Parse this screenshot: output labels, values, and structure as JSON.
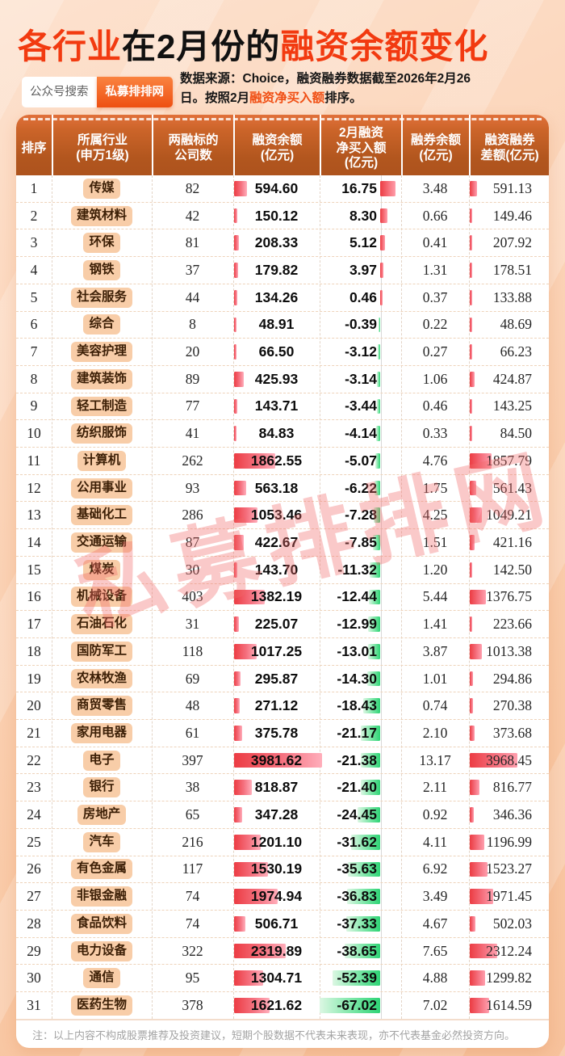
{
  "header": {
    "title_red1": "各行业",
    "title_black": "在2月份的",
    "title_red2": "融资余额变化",
    "search_label": "公众号搜索",
    "brand_label": "私募排排网",
    "source_line1": "数据来源：Choice，融资融券数据截至2026年2月26",
    "source_line2_pre": "日。按照2月",
    "source_line2_highlight": "融资净买入额",
    "source_line2_post": "排序。"
  },
  "watermark": "私募排排网",
  "note": "注：以上内容不构成股票推荐及投资建议，短期个股数据不代表未来表现，亦不代表基金必然投资方向。",
  "colors": {
    "accent_red": "#f23a10",
    "header_cell_bg": "#b2561e",
    "pill_bg": "#f8cda8",
    "bar_red": "#ec3c43",
    "bar_pink": "#ffaebb",
    "bar_green": "#2dd374",
    "page_bg": "#f9c9a6"
  },
  "chart_data": {
    "type": "table",
    "title": "各行业在2月份的融资余额变化",
    "sort_note": "按照2月融资净买入额排序",
    "columns": [
      "排序",
      "所属行业(申万1级)",
      "两融标的公司数",
      "融资余额(亿元)",
      "2月融资净买入额(亿元)",
      "融券余额(亿元)",
      "融资融券差额(亿元)"
    ],
    "header_lines": [
      [
        "排序"
      ],
      [
        "所属行业",
        "(申万1级)"
      ],
      [
        "两融标的",
        "公司数"
      ],
      [
        "融资余额",
        "(亿元)"
      ],
      [
        "2月融资",
        "净买入额",
        "(亿元)"
      ],
      [
        "融券余额",
        "(亿元)"
      ],
      [
        "融资融券",
        "差额(亿元)"
      ]
    ],
    "bar_scale_max": {
      "financing_balance": 3981.62,
      "net_buy": 67.02,
      "margin_diff": 3968.45
    },
    "rows": [
      {
        "rank": 1,
        "industry": "传媒",
        "companies": 82,
        "financing_balance": "594.60",
        "net_buy": "16.75",
        "short_balance": "3.48",
        "margin_diff": "591.13"
      },
      {
        "rank": 2,
        "industry": "建筑材料",
        "companies": 42,
        "financing_balance": "150.12",
        "net_buy": "8.30",
        "short_balance": "0.66",
        "margin_diff": "149.46"
      },
      {
        "rank": 3,
        "industry": "环保",
        "companies": 81,
        "financing_balance": "208.33",
        "net_buy": "5.12",
        "short_balance": "0.41",
        "margin_diff": "207.92"
      },
      {
        "rank": 4,
        "industry": "钢铁",
        "companies": 37,
        "financing_balance": "179.82",
        "net_buy": "3.97",
        "short_balance": "1.31",
        "margin_diff": "178.51"
      },
      {
        "rank": 5,
        "industry": "社会服务",
        "companies": 44,
        "financing_balance": "134.26",
        "net_buy": "0.46",
        "short_balance": "0.37",
        "margin_diff": "133.88"
      },
      {
        "rank": 6,
        "industry": "综合",
        "companies": 8,
        "financing_balance": "48.91",
        "net_buy": "-0.39",
        "short_balance": "0.22",
        "margin_diff": "48.69"
      },
      {
        "rank": 7,
        "industry": "美容护理",
        "companies": 20,
        "financing_balance": "66.50",
        "net_buy": "-3.12",
        "short_balance": "0.27",
        "margin_diff": "66.23"
      },
      {
        "rank": 8,
        "industry": "建筑装饰",
        "companies": 89,
        "financing_balance": "425.93",
        "net_buy": "-3.14",
        "short_balance": "1.06",
        "margin_diff": "424.87"
      },
      {
        "rank": 9,
        "industry": "轻工制造",
        "companies": 77,
        "financing_balance": "143.71",
        "net_buy": "-3.44",
        "short_balance": "0.46",
        "margin_diff": "143.25"
      },
      {
        "rank": 10,
        "industry": "纺织服饰",
        "companies": 41,
        "financing_balance": "84.83",
        "net_buy": "-4.14",
        "short_balance": "0.33",
        "margin_diff": "84.50"
      },
      {
        "rank": 11,
        "industry": "计算机",
        "companies": 262,
        "financing_balance": "1862.55",
        "net_buy": "-5.07",
        "short_balance": "4.76",
        "margin_diff": "1857.79"
      },
      {
        "rank": 12,
        "industry": "公用事业",
        "companies": 93,
        "financing_balance": "563.18",
        "net_buy": "-6.22",
        "short_balance": "1.75",
        "margin_diff": "561.43"
      },
      {
        "rank": 13,
        "industry": "基础化工",
        "companies": 286,
        "financing_balance": "1053.46",
        "net_buy": "-7.28",
        "short_balance": "4.25",
        "margin_diff": "1049.21"
      },
      {
        "rank": 14,
        "industry": "交通运输",
        "companies": 87,
        "financing_balance": "422.67",
        "net_buy": "-7.85",
        "short_balance": "1.51",
        "margin_diff": "421.16"
      },
      {
        "rank": 15,
        "industry": "煤炭",
        "companies": 30,
        "financing_balance": "143.70",
        "net_buy": "-11.32",
        "short_balance": "1.20",
        "margin_diff": "142.50"
      },
      {
        "rank": 16,
        "industry": "机械设备",
        "companies": 403,
        "financing_balance": "1382.19",
        "net_buy": "-12.44",
        "short_balance": "5.44",
        "margin_diff": "1376.75"
      },
      {
        "rank": 17,
        "industry": "石油石化",
        "companies": 31,
        "financing_balance": "225.07",
        "net_buy": "-12.99",
        "short_balance": "1.41",
        "margin_diff": "223.66"
      },
      {
        "rank": 18,
        "industry": "国防军工",
        "companies": 118,
        "financing_balance": "1017.25",
        "net_buy": "-13.01",
        "short_balance": "3.87",
        "margin_diff": "1013.38"
      },
      {
        "rank": 19,
        "industry": "农林牧渔",
        "companies": 69,
        "financing_balance": "295.87",
        "net_buy": "-14.30",
        "short_balance": "1.01",
        "margin_diff": "294.86"
      },
      {
        "rank": 20,
        "industry": "商贸零售",
        "companies": 48,
        "financing_balance": "271.12",
        "net_buy": "-18.43",
        "short_balance": "0.74",
        "margin_diff": "270.38"
      },
      {
        "rank": 21,
        "industry": "家用电器",
        "companies": 61,
        "financing_balance": "375.78",
        "net_buy": "-21.17",
        "short_balance": "2.10",
        "margin_diff": "373.68"
      },
      {
        "rank": 22,
        "industry": "电子",
        "companies": 397,
        "financing_balance": "3981.62",
        "net_buy": "-21.38",
        "short_balance": "13.17",
        "margin_diff": "3968.45"
      },
      {
        "rank": 23,
        "industry": "银行",
        "companies": 38,
        "financing_balance": "818.87",
        "net_buy": "-21.40",
        "short_balance": "2.11",
        "margin_diff": "816.77"
      },
      {
        "rank": 24,
        "industry": "房地产",
        "companies": 65,
        "financing_balance": "347.28",
        "net_buy": "-24.45",
        "short_balance": "0.92",
        "margin_diff": "346.36"
      },
      {
        "rank": 25,
        "industry": "汽车",
        "companies": 216,
        "financing_balance": "1201.10",
        "net_buy": "-31.62",
        "short_balance": "4.11",
        "margin_diff": "1196.99"
      },
      {
        "rank": 26,
        "industry": "有色金属",
        "companies": 117,
        "financing_balance": "1530.19",
        "net_buy": "-35.63",
        "short_balance": "6.92",
        "margin_diff": "1523.27"
      },
      {
        "rank": 27,
        "industry": "非银金融",
        "companies": 74,
        "financing_balance": "1974.94",
        "net_buy": "-36.83",
        "short_balance": "3.49",
        "margin_diff": "1971.45"
      },
      {
        "rank": 28,
        "industry": "食品饮料",
        "companies": 74,
        "financing_balance": "506.71",
        "net_buy": "-37.33",
        "short_balance": "4.67",
        "margin_diff": "502.03"
      },
      {
        "rank": 29,
        "industry": "电力设备",
        "companies": 322,
        "financing_balance": "2319.89",
        "net_buy": "-38.65",
        "short_balance": "7.65",
        "margin_diff": "2312.24"
      },
      {
        "rank": 30,
        "industry": "通信",
        "companies": 95,
        "financing_balance": "1304.71",
        "net_buy": "-52.39",
        "short_balance": "4.88",
        "margin_diff": "1299.82"
      },
      {
        "rank": 31,
        "industry": "医药生物",
        "companies": 378,
        "financing_balance": "1621.62",
        "net_buy": "-67.02",
        "short_balance": "7.02",
        "margin_diff": "1614.59"
      }
    ]
  }
}
